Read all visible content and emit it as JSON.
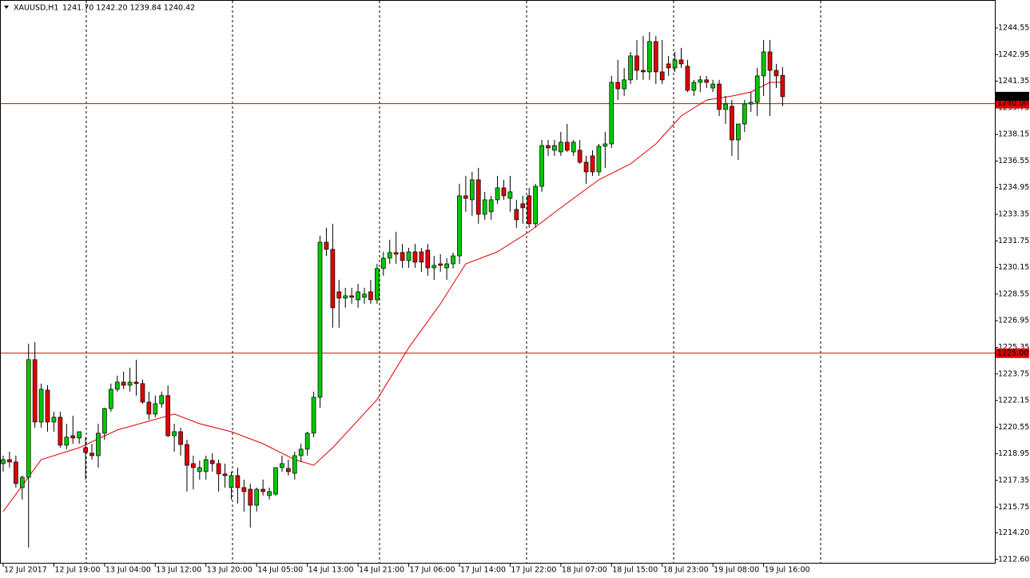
{
  "chart_data": {
    "type": "candlestick",
    "header": {
      "symbol": "XAUUSD,H1",
      "ohlc_text": "1241.70 1242.20 1239.84 1240.42"
    },
    "categories": [
      "12 Jul 2017",
      null,
      null,
      null,
      null,
      null,
      null,
      null,
      "12 Jul 19:00",
      null,
      null,
      null,
      null,
      null,
      null,
      null,
      "13 Jul 04:00",
      null,
      null,
      null,
      null,
      null,
      null,
      null,
      "13 Jul 12:00",
      null,
      null,
      null,
      null,
      null,
      null,
      null,
      "13 Jul 20:00",
      null,
      null,
      null,
      null,
      null,
      null,
      null,
      "14 Jul 05:00",
      null,
      null,
      null,
      null,
      null,
      null,
      null,
      "14 Jul 13:00",
      null,
      null,
      null,
      null,
      null,
      null,
      null,
      "14 Jul 21:00",
      null,
      null,
      null,
      null,
      null,
      null,
      null,
      "17 Jul 06:00",
      null,
      null,
      null,
      null,
      null,
      null,
      null,
      "17 Jul 14:00",
      null,
      null,
      null,
      null,
      null,
      null,
      null,
      "17 Jul 22:00",
      null,
      null,
      null,
      null,
      null,
      null,
      null,
      "18 Jul 07:00",
      null,
      null,
      null,
      null,
      null,
      null,
      null,
      "18 Jul 15:00",
      null,
      null,
      null,
      null,
      null,
      null,
      null,
      "18 Jul 23:00",
      null,
      null,
      null,
      null,
      null,
      null,
      null,
      "19 Jul 08:00",
      null,
      null,
      null,
      null,
      null,
      null,
      null,
      "19 Jul 16:00",
      null,
      null,
      null
    ],
    "open": [
      1218.36,
      1218.6,
      1218.46,
      1216.92,
      1217.54,
      1224.61,
      1220.86,
      1222.78,
      1220.86,
      1221.15,
      1219.47,
      1220.04,
      1219.9,
      1219.32,
      1218.99,
      1218.84,
      1220.19,
      1221.67,
      1222.83,
      1223.26,
      1223.07,
      1223.26,
      1223.17,
      1222.06,
      1221.34,
      1221.96,
      1222.45,
      1220.04,
      1220.28,
      1219.51,
      1218.36,
      1217.88,
      1217.88,
      1218.55,
      1218.36,
      1217.74,
      1216.92,
      1217.64,
      1216.92,
      1216.82,
      1215.86,
      1216.82,
      1216.44,
      1216.53,
      1218.12,
      1218.07,
      1217.78,
      1218.84,
      1219.23,
      1220.19,
      1222.35,
      1231.67,
      1231.24,
      1228.69,
      1228.31,
      1228.45,
      1228.21,
      1228.36,
      1228.69,
      1228.21,
      1230.09,
      1230.71,
      1231.05,
      1231.05,
      1230.57,
      1231.09,
      1231.09,
      1231.19,
      1230.13,
      1230.37,
      1230.13,
      1230.37,
      1230.85,
      1234.46,
      1234.22,
      1235.42,
      1233.35,
      1233.5,
      1234.22,
      1234.94,
      1234.31,
      1233.64,
      1233.98,
      1234.46,
      1232.78,
      1235.03,
      1237.48,
      1237.2,
      1237.1,
      1237.68,
      1237.1,
      1237.2,
      1236.48,
      1236.86,
      1235.9,
      1237.44,
      1237.58,
      1241.28,
      1240.89,
      1241.43,
      1242.87,
      1242.0,
      1241.91,
      1243.73,
      1241.91,
      1242.39,
      1242.15,
      1242.63,
      1242.25,
      1240.8,
      1241.28,
      1241.43,
      1240.94,
      1241.18,
      1239.65,
      1239.84,
      1237.82,
      1238.78,
      1239.98,
      1240.08,
      1241.67,
      1243.11,
      1242.0,
      1241.7
    ],
    "high": [
      1218.84,
      1219.08,
      1218.84,
      1217.64,
      1225.57,
      1225.66,
      1223.17,
      1223.07,
      1221.48,
      1221.48,
      1220.76,
      1221.24,
      1220.28,
      1219.95,
      1219.56,
      1220.76,
      1221.72,
      1223.17,
      1223.65,
      1223.89,
      1224.13,
      1224.61,
      1223.41,
      1222.69,
      1222.45,
      1222.69,
      1223.07,
      1220.76,
      1220.52,
      1219.8,
      1218.84,
      1218.55,
      1218.84,
      1218.99,
      1218.6,
      1218.36,
      1217.88,
      1218.12,
      1217.4,
      1217.16,
      1216.92,
      1217.4,
      1216.92,
      1218.12,
      1218.84,
      1218.6,
      1219.08,
      1219.56,
      1220.28,
      1222.69,
      1232.06,
      1232.54,
      1232.78,
      1229.41,
      1228.93,
      1228.93,
      1229.17,
      1228.93,
      1229.41,
      1230.37,
      1231.09,
      1231.82,
      1232.3,
      1231.57,
      1231.33,
      1231.57,
      1231.33,
      1231.57,
      1230.85,
      1230.95,
      1230.71,
      1231.05,
      1235.18,
      1235.66,
      1235.9,
      1236.14,
      1234.7,
      1234.46,
      1235.66,
      1235.42,
      1235.66,
      1234.22,
      1234.46,
      1234.94,
      1235.18,
      1237.82,
      1237.82,
      1237.82,
      1238.3,
      1238.78,
      1237.82,
      1237.82,
      1236.86,
      1237.2,
      1237.58,
      1238.3,
      1241.67,
      1242.63,
      1242.15,
      1243.11,
      1243.83,
      1244.07,
      1244.31,
      1244.07,
      1243.83,
      1242.87,
      1243.11,
      1243.35,
      1242.63,
      1241.43,
      1241.67,
      1241.67,
      1241.43,
      1241.43,
      1240.46,
      1240.22,
      1238.78,
      1240.22,
      1240.7,
      1242.15,
      1243.83,
      1243.83,
      1242.39,
      1242.2
    ],
    "low": [
      1217.88,
      1218.12,
      1216.92,
      1216.2,
      1213.32,
      1220.52,
      1220.52,
      1220.28,
      1220.28,
      1219.32,
      1219.23,
      1219.56,
      1219.56,
      1217.4,
      1218.6,
      1218.12,
      1219.8,
      1221.48,
      1222.69,
      1222.83,
      1222.69,
      1222.45,
      1221.96,
      1221.0,
      1221.15,
      1221.72,
      1219.95,
      1219.08,
      1218.84,
      1216.68,
      1216.82,
      1217.4,
      1217.4,
      1217.88,
      1216.68,
      1216.92,
      1216.2,
      1215.96,
      1215.48,
      1214.52,
      1215.48,
      1216.44,
      1216.2,
      1216.44,
      1217.88,
      1217.64,
      1217.4,
      1218.46,
      1218.84,
      1219.95,
      1221.72,
      1230.85,
      1226.53,
      1226.53,
      1227.73,
      1227.97,
      1227.73,
      1227.97,
      1227.97,
      1227.97,
      1229.65,
      1230.37,
      1230.37,
      1230.13,
      1230.13,
      1230.13,
      1229.89,
      1229.65,
      1229.41,
      1229.89,
      1229.41,
      1230.09,
      1230.37,
      1233.5,
      1233.26,
      1232.78,
      1233.02,
      1233.02,
      1233.98,
      1234.22,
      1233.5,
      1232.54,
      1232.78,
      1232.54,
      1232.54,
      1234.7,
      1236.86,
      1236.86,
      1236.86,
      1237.1,
      1236.86,
      1236.38,
      1235.18,
      1235.66,
      1235.66,
      1236.14,
      1237.34,
      1240.22,
      1240.46,
      1241.18,
      1241.43,
      1241.43,
      1241.43,
      1241.18,
      1241.18,
      1241.67,
      1241.91,
      1242.15,
      1240.7,
      1240.46,
      1240.7,
      1240.94,
      1240.7,
      1239.26,
      1238.78,
      1236.86,
      1236.62,
      1238.3,
      1239.5,
      1239.26,
      1240.46,
      1239.26,
      1240.94,
      1239.84
    ],
    "close": [
      1218.6,
      1218.46,
      1217.16,
      1217.54,
      1224.61,
      1220.86,
      1222.83,
      1220.86,
      1221.15,
      1219.47,
      1219.95,
      1219.9,
      1220.28,
      1219.03,
      1218.84,
      1220.19,
      1221.67,
      1222.83,
      1223.26,
      1223.07,
      1223.26,
      1223.17,
      1222.06,
      1221.34,
      1221.96,
      1222.45,
      1220.04,
      1220.28,
      1219.51,
      1218.26,
      1218.12,
      1218.12,
      1218.6,
      1218.36,
      1217.74,
      1217.64,
      1217.64,
      1216.92,
      1216.68,
      1215.86,
      1216.82,
      1216.68,
      1216.68,
      1218.12,
      1218.36,
      1217.88,
      1218.84,
      1219.23,
      1220.19,
      1222.35,
      1231.67,
      1231.24,
      1227.73,
      1228.31,
      1228.45,
      1228.36,
      1228.69,
      1228.55,
      1228.21,
      1230.09,
      1230.71,
      1231.05,
      1230.95,
      1230.57,
      1231.09,
      1230.47,
      1230.47,
      1230.13,
      1230.28,
      1230.28,
      1230.37,
      1230.85,
      1234.46,
      1234.31,
      1235.42,
      1233.35,
      1234.22,
      1234.22,
      1234.94,
      1234.46,
      1234.7,
      1233.02,
      1233.74,
      1232.78,
      1235.03,
      1237.48,
      1237.34,
      1237.48,
      1237.68,
      1237.2,
      1237.68,
      1236.48,
      1235.9,
      1235.9,
      1237.44,
      1237.58,
      1241.28,
      1240.89,
      1241.43,
      1242.87,
      1242.0,
      1241.91,
      1243.73,
      1241.91,
      1241.43,
      1242.15,
      1242.63,
      1242.39,
      1240.8,
      1241.28,
      1241.43,
      1241.28,
      1241.18,
      1239.65,
      1239.98,
      1237.82,
      1238.78,
      1239.98,
      1240.08,
      1241.67,
      1243.11,
      1242.0,
      1241.67,
      1240.42
    ],
    "up_color": "#00c800",
    "down_color": "#e00000",
    "ma": {
      "color": "#e00000",
      "x": [
        0,
        6,
        12,
        18,
        27,
        31,
        36,
        41,
        46,
        49,
        52,
        59,
        64,
        69,
        73,
        78,
        83,
        88,
        94,
        99,
        103,
        107,
        111,
        115,
        118,
        121,
        123
      ],
      "values": [
        1215.48,
        1218.6,
        1219.32,
        1220.38,
        1221.34,
        1220.76,
        1220.28,
        1219.56,
        1218.6,
        1218.26,
        1219.32,
        1222.21,
        1225.33,
        1227.97,
        1230.37,
        1231.09,
        1232.3,
        1233.74,
        1235.42,
        1236.38,
        1237.58,
        1239.26,
        1240.22,
        1240.46,
        1240.7,
        1241.28,
        1241.28
      ]
    },
    "hlines": [
      {
        "value": 1240,
        "label": "1240.00",
        "color": "#e00000"
      },
      {
        "value": 1225,
        "label": "1225.00",
        "color": "#e00000"
      }
    ],
    "last_price": {
      "value": 1240.42,
      "label": "1240.42"
    },
    "ylim": [
      1212.35,
      1246.23
    ],
    "yticks": [
      1244.55,
      1242.95,
      1241.35,
      1239.75,
      1238.15,
      1236.55,
      1234.95,
      1233.35,
      1231.75,
      1230.15,
      1228.55,
      1226.95,
      1225.35,
      1223.75,
      1222.15,
      1220.55,
      1218.95,
      1217.35,
      1215.75,
      {
        "value": 1214.2,
        "label": "1214.20"
      },
      {
        "value": 1212.6,
        "label": "1212.60"
      }
    ]
  }
}
